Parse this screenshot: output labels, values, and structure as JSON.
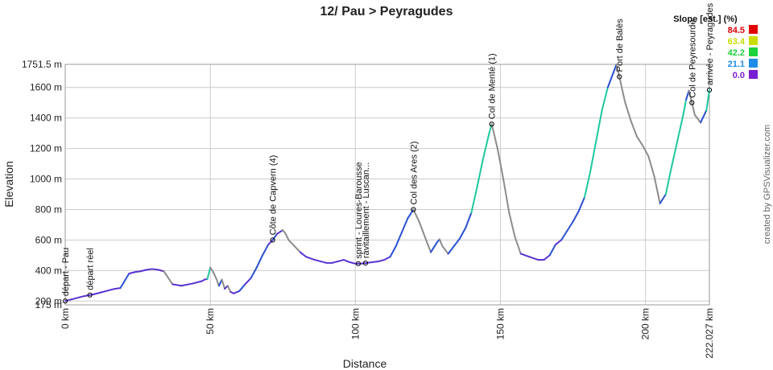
{
  "chart_data": {
    "type": "area",
    "title": "12/ Pau > Peyragudes",
    "xlabel": "Distance",
    "ylabel": "Elevation",
    "xlim": [
      0,
      222.027
    ],
    "ylim": [
      175,
      1751.5
    ],
    "x_ticks": [
      {
        "value": 0,
        "label": "0 km"
      },
      {
        "value": 50,
        "label": "50 km"
      },
      {
        "value": 100,
        "label": "100 km"
      },
      {
        "value": 150,
        "label": "150 km"
      },
      {
        "value": 200,
        "label": "200 km"
      },
      {
        "value": 222.027,
        "label": "222.027 km"
      }
    ],
    "y_ticks": [
      {
        "value": 175,
        "label": "175 m"
      },
      {
        "value": 200,
        "label": "200 m"
      },
      {
        "value": 400,
        "label": "400 m"
      },
      {
        "value": 600,
        "label": "600 m"
      },
      {
        "value": 800,
        "label": "800 m"
      },
      {
        "value": 1000,
        "label": "1000 m"
      },
      {
        "value": 1200,
        "label": "1200 m"
      },
      {
        "value": 1400,
        "label": "1400 m"
      },
      {
        "value": 1600,
        "label": "1600 m"
      },
      {
        "value": 1751.5,
        "label": "1751.5 m"
      }
    ],
    "grid": true,
    "x": [
      0,
      3,
      6,
      10,
      14,
      17,
      19,
      22,
      24,
      26,
      28,
      30,
      32,
      34,
      37,
      40,
      44,
      47,
      48,
      49,
      50,
      51,
      52,
      53,
      54,
      55,
      56,
      57,
      58,
      60,
      62,
      64,
      66,
      68,
      70,
      71.5,
      73,
      75,
      76,
      77,
      79,
      81,
      83,
      86,
      88,
      90,
      92,
      94,
      96,
      98,
      100,
      102,
      104,
      106,
      108,
      110,
      112,
      114,
      116,
      118,
      120,
      122,
      124,
      126,
      128,
      129,
      130,
      132,
      134,
      136,
      138,
      140,
      142,
      144,
      146,
      147,
      149,
      151,
      153,
      155,
      157,
      160,
      163,
      165,
      167,
      169,
      171,
      173,
      175,
      177,
      179,
      181,
      183,
      185,
      187,
      189,
      190,
      191,
      193,
      195,
      197,
      199,
      201,
      203,
      205,
      207,
      209,
      211,
      213,
      214,
      215,
      217,
      219,
      221,
      222.027
    ],
    "y": [
      200,
      215,
      230,
      245,
      265,
      280,
      285,
      380,
      390,
      395,
      405,
      410,
      405,
      395,
      310,
      300,
      315,
      330,
      340,
      345,
      420,
      390,
      350,
      300,
      340,
      280,
      300,
      260,
      250,
      265,
      310,
      350,
      420,
      500,
      570,
      600,
      640,
      665,
      640,
      600,
      560,
      520,
      490,
      470,
      460,
      450,
      450,
      460,
      470,
      455,
      445,
      445,
      450,
      455,
      460,
      470,
      490,
      560,
      650,
      740,
      800,
      720,
      620,
      520,
      580,
      605,
      560,
      510,
      560,
      610,
      680,
      780,
      950,
      1130,
      1290,
      1360,
      1200,
      1000,
      780,
      620,
      510,
      490,
      470,
      470,
      500,
      570,
      600,
      660,
      720,
      790,
      880,
      1050,
      1250,
      1450,
      1600,
      1700,
      1751.5,
      1670,
      1500,
      1380,
      1280,
      1220,
      1150,
      1020,
      840,
      900,
      1080,
      1250,
      1420,
      1520,
      1580,
      1420,
      1370,
      1450,
      1583
    ]
  },
  "waypoints": [
    {
      "km": 0,
      "label": "départ - Pau"
    },
    {
      "km": 8.5,
      "label": "départ réel"
    },
    {
      "km": 71.5,
      "label": "Côte de Capvern (4)"
    },
    {
      "km": 101,
      "label": "sprint - Loures-Barousse"
    },
    {
      "km": 103.5,
      "label": "ravitaillement - Luscan..."
    },
    {
      "km": 120,
      "label": "Col des Ares (2)"
    },
    {
      "km": 147,
      "label": "Col de Menté (1)"
    },
    {
      "km": 191,
      "label": "Port de Balès"
    },
    {
      "km": 216,
      "label": "Col de Peyresourde"
    },
    {
      "km": 222.027,
      "label": "arrivée - Peyragudes"
    }
  ],
  "legend": {
    "title": "Slope [est.] (%)",
    "items": [
      {
        "value": "84.5",
        "color": "#e00000"
      },
      {
        "value": "63.4",
        "color": "#c8dc00"
      },
      {
        "value": "42.2",
        "color": "#1ed23c"
      },
      {
        "value": "21.1",
        "color": "#1e8ce6"
      },
      {
        "value": "0.0",
        "color": "#7a1ed2"
      }
    ]
  },
  "credit": "created by GPSVisualizer.com",
  "colors": {
    "grid": "#cccccc",
    "fill": "#ffffff",
    "line_flat": "#5a32d2",
    "line_mid": "#2850d2",
    "line_descent": "#8c8c8c",
    "line_steep": "#1ec8a0"
  }
}
